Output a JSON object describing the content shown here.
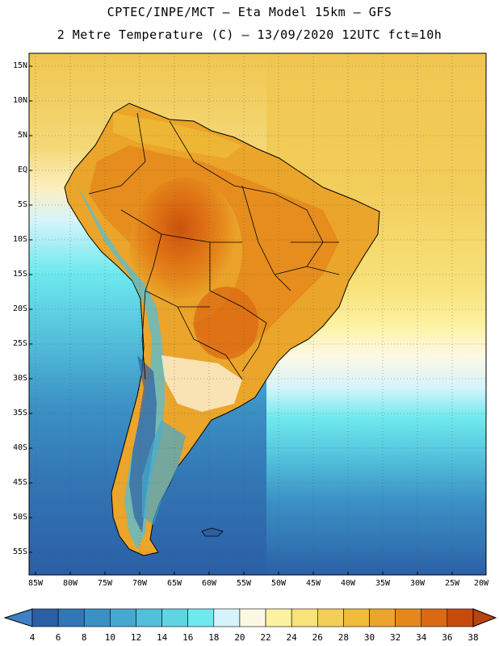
{
  "title": {
    "line1": "CPTEC/INPE/MCT –  Eta Model 15km – GFS",
    "line2": "2 Metre Temperature (C) – 13/09/2020 12UTC fct=10h"
  },
  "lat_labels": [
    "15N",
    "10N",
    "5N",
    "EQ",
    "5S",
    "10S",
    "15S",
    "20S",
    "25S",
    "30S",
    "35S",
    "40S",
    "45S",
    "50S",
    "55S"
  ],
  "lon_labels": [
    "85W",
    "80W",
    "75W",
    "70W",
    "65W",
    "60W",
    "55W",
    "50W",
    "45W",
    "40W",
    "35W",
    "30W",
    "25W",
    "20W"
  ],
  "colorbar": {
    "labels": [
      "4",
      "6",
      "8",
      "10",
      "12",
      "14",
      "16",
      "18",
      "20",
      "22",
      "24",
      "26",
      "28",
      "30",
      "32",
      "34",
      "36",
      "38"
    ],
    "colors": [
      "#2b5fa6",
      "#3276b5",
      "#3b90c4",
      "#45a8cf",
      "#52bfdb",
      "#5fd4e3",
      "#6ee9ee",
      "#d6f4fb",
      "#fdf8e4",
      "#fdf2a2",
      "#f8e27a",
      "#f3cf57",
      "#efbd3a",
      "#eaa52a",
      "#e5881c",
      "#db6a12",
      "#c84b0c"
    ],
    "low_color": "#3f7fc6",
    "high_color": "#b7430e"
  }
}
